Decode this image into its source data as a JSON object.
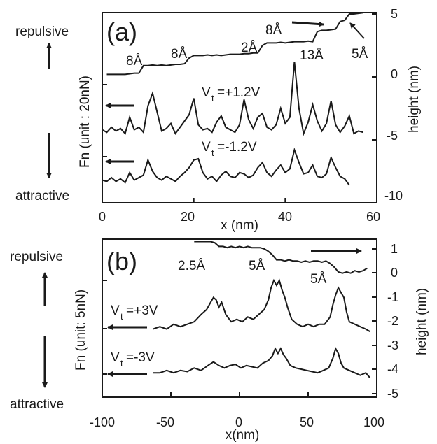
{
  "chart_data": [
    {
      "type": "line",
      "panel_label": "(a)",
      "xlabel": "x (nm)",
      "ylabel_left": "Fn (unit : 20nN)",
      "ylabel_right": "height (nm)",
      "xlim": [
        0,
        60
      ],
      "ylim_right": [
        -10,
        5
      ],
      "xticks": [
        "0",
        "20",
        "40",
        "60"
      ],
      "yticks_right": [
        "5",
        "0",
        "-5",
        "-10"
      ],
      "up_label": "repulsive",
      "down_label": "attractive",
      "annotations": [
        "8Å",
        "8Å",
        "2Å",
        "8Å",
        "13Å",
        "5Å"
      ],
      "series": [
        {
          "name": "height",
          "x": [
            1,
            2,
            3,
            4,
            5,
            6,
            7,
            8,
            9,
            10,
            11,
            12,
            13,
            14,
            15,
            16,
            17,
            18,
            19,
            20,
            21,
            22,
            23,
            24,
            25,
            26,
            27,
            28,
            29,
            30,
            31,
            32,
            33,
            34,
            35,
            36,
            37,
            38,
            39,
            40,
            41,
            42,
            43,
            44,
            45,
            46,
            47,
            48,
            49,
            50,
            51,
            52,
            53,
            54,
            55,
            56,
            57
          ],
          "y": [
            0.2,
            0.2,
            0.2,
            0.2,
            0.2,
            0.25,
            0.3,
            0.3,
            0.9,
            0.9,
            0.95,
            0.9,
            0.95,
            0.9,
            0.95,
            1.0,
            1.0,
            1.05,
            1.5,
            1.7,
            1.7,
            1.7,
            1.75,
            1.7,
            1.75,
            1.7,
            1.75,
            1.8,
            1.8,
            1.8,
            1.85,
            1.85,
            1.9,
            1.9,
            2.5,
            2.7,
            2.7,
            2.7,
            2.75,
            2.7,
            2.75,
            2.8,
            2.8,
            2.8,
            2.85,
            2.8,
            3.6,
            3.7,
            3.7,
            3.75,
            3.8,
            4.4,
            4.5,
            5.0,
            5.0,
            5.05,
            5.1
          ]
        },
        {
          "name": "Vt=+1.2V",
          "x": [
            0,
            1,
            2,
            3,
            4,
            5,
            6,
            7,
            8,
            9,
            10,
            11,
            12,
            13,
            14,
            15,
            16,
            17,
            18,
            19,
            20,
            21,
            22,
            23,
            24,
            25,
            26,
            27,
            28,
            29,
            30,
            31,
            32,
            33,
            34,
            35,
            36,
            37,
            38,
            39,
            40,
            41,
            42,
            43,
            44,
            45,
            46,
            47,
            48,
            49,
            50,
            51,
            52,
            53,
            54,
            55,
            56,
            57
          ],
          "y": [
            -4.2,
            -4.4,
            -4.0,
            -4.3,
            -4.1,
            -4.5,
            -3.2,
            -4.2,
            -4.0,
            -4.4,
            -2.3,
            -1.3,
            -2.8,
            -4.3,
            -4.1,
            -3.7,
            -4.5,
            -4.0,
            -3.5,
            -3.0,
            -1.7,
            -3.8,
            -4.2,
            -4.1,
            -4.4,
            -3.6,
            -3.1,
            -4.0,
            -4.2,
            -4.4,
            -3.8,
            -1.8,
            -3.4,
            -4.1,
            -3.2,
            -2.9,
            -4.0,
            -4.2,
            -3.8,
            -2.5,
            -3.7,
            -3.2,
            1.2,
            -2.5,
            -4.5,
            -3.6,
            -2.2,
            -3.5,
            -4.3,
            -3.7,
            -1.9,
            -3.8,
            -4.4,
            -3.9,
            -3.1,
            -4.5,
            -4.3,
            -4.4
          ]
        },
        {
          "name": "Vt=-1.2V",
          "x": [
            0,
            1,
            2,
            3,
            4,
            5,
            6,
            7,
            8,
            9,
            10,
            11,
            12,
            13,
            14,
            15,
            16,
            17,
            18,
            19,
            20,
            21,
            22,
            23,
            24,
            25,
            26,
            27,
            28,
            29,
            30,
            31,
            32,
            33,
            34,
            35,
            36,
            37,
            38,
            39,
            40,
            41,
            42,
            43,
            44,
            45,
            46,
            47,
            48,
            49,
            50,
            51,
            52,
            53,
            54
          ],
          "y": [
            -8.2,
            -8.3,
            -8.0,
            -8.3,
            -8.1,
            -8.4,
            -7.6,
            -8.2,
            -8.0,
            -7.8,
            -6.6,
            -7.5,
            -8.0,
            -8.2,
            -7.9,
            -8.1,
            -8.3,
            -7.9,
            -7.6,
            -7.2,
            -6.6,
            -6.5,
            -7.6,
            -8.1,
            -7.9,
            -8.3,
            -7.8,
            -7.5,
            -7.9,
            -8.0,
            -7.6,
            -7.7,
            -8.0,
            -7.8,
            -7.2,
            -6.8,
            -7.6,
            -7.9,
            -7.4,
            -7.0,
            -7.6,
            -7.3,
            -5.8,
            -6.8,
            -7.7,
            -7.6,
            -7.0,
            -7.9,
            -8.0,
            -7.7,
            -6.4,
            -7.2,
            -7.9,
            -8.1,
            -8.6
          ]
        }
      ]
    },
    {
      "type": "line",
      "panel_label": "(b)",
      "xlabel": "x(nm)",
      "ylabel_left": "Fn (unit: 5nN)",
      "ylabel_right": "height (nm)",
      "xlim": [
        -100,
        100
      ],
      "ylim_right": [
        -5,
        1.5
      ],
      "xticks": [
        "-100",
        "-50",
        "0",
        "50",
        "100"
      ],
      "yticks_right": [
        "1",
        "0",
        "-1",
        "-2",
        "-3",
        "-4",
        "-5"
      ],
      "up_label": "repulsive",
      "down_label": "attractive",
      "annotations": [
        "2.5Å",
        "5Å",
        "5Å"
      ],
      "series": [
        {
          "name": "height",
          "x": [
            -33,
            -30,
            -27,
            -24,
            -21,
            -18,
            -15,
            -12,
            -9,
            -6,
            -3,
            0,
            3,
            6,
            9,
            12,
            15,
            18,
            21,
            24,
            27,
            30,
            33,
            36,
            39,
            42,
            45,
            48,
            51,
            54,
            57,
            60,
            63,
            66,
            69,
            72,
            75,
            78,
            81,
            84,
            87,
            90,
            93
          ],
          "y": [
            1.4,
            1.4,
            1.4,
            1.4,
            1.4,
            1.35,
            1.2,
            1.2,
            1.15,
            1.2,
            1.15,
            1.2,
            1.15,
            1.2,
            1.15,
            1.15,
            1.15,
            1.1,
            1.0,
            0.85,
            0.65,
            0.65,
            0.6,
            0.65,
            0.6,
            0.6,
            0.55,
            0.6,
            0.55,
            0.6,
            0.6,
            0.55,
            0.6,
            0.5,
            0.35,
            0.15,
            0.1,
            0.15,
            0.1,
            0.2,
            0.15,
            0.2,
            0.3
          ]
        },
        {
          "name": "Vt=+3V",
          "x": [
            -63,
            -58,
            -53,
            -48,
            -43,
            -38,
            -33,
            -28,
            -24,
            -21,
            -19,
            -17,
            -15,
            -13,
            -10,
            -6,
            -2,
            2,
            6,
            10,
            14,
            18,
            21,
            23,
            25,
            27,
            29,
            31,
            33,
            35,
            38,
            42,
            46,
            50,
            54,
            58,
            62,
            66,
            68,
            70,
            72,
            74,
            76,
            78,
            80,
            84,
            88,
            92,
            95
          ],
          "y": [
            -2.2,
            -2.1,
            -2.2,
            -2.0,
            -2.1,
            -2.0,
            -1.9,
            -1.6,
            -1.4,
            -1.1,
            -0.9,
            -1.0,
            -1.3,
            -1.1,
            -1.6,
            -1.9,
            -1.8,
            -1.9,
            -1.7,
            -1.8,
            -1.6,
            -1.4,
            -1.0,
            -0.5,
            -0.2,
            -0.4,
            -0.2,
            -0.6,
            -0.9,
            -1.3,
            -1.8,
            -2.0,
            -2.1,
            -2.0,
            -2.1,
            -2.0,
            -2.0,
            -1.7,
            -1.2,
            -0.8,
            -0.5,
            -0.7,
            -0.9,
            -1.5,
            -1.9,
            -2.0,
            -2.1,
            -2.2,
            -2.3
          ]
        },
        {
          "name": "Vt=-3V",
          "x": [
            -63,
            -58,
            -53,
            -48,
            -43,
            -38,
            -33,
            -28,
            -23,
            -19,
            -15,
            -11,
            -7,
            -3,
            1,
            5,
            9,
            13,
            17,
            21,
            24,
            26,
            28,
            30,
            32,
            34,
            37,
            41,
            45,
            49,
            53,
            57,
            61,
            65,
            68,
            70,
            72,
            74,
            76,
            80,
            84,
            88,
            92,
            95
          ],
          "y": [
            -4.0,
            -4.0,
            -3.9,
            -4.0,
            -3.9,
            -3.95,
            -3.8,
            -3.9,
            -3.7,
            -3.55,
            -3.7,
            -3.8,
            -3.7,
            -3.65,
            -3.8,
            -3.7,
            -3.75,
            -3.8,
            -3.6,
            -3.5,
            -3.3,
            -3.0,
            -3.2,
            -3.0,
            -3.25,
            -3.4,
            -3.7,
            -3.8,
            -3.85,
            -3.9,
            -3.95,
            -4.0,
            -3.9,
            -3.8,
            -3.4,
            -3.0,
            -3.2,
            -3.6,
            -3.8,
            -3.9,
            -4.0,
            -4.1,
            -4.0,
            -4.2
          ]
        }
      ]
    }
  ]
}
